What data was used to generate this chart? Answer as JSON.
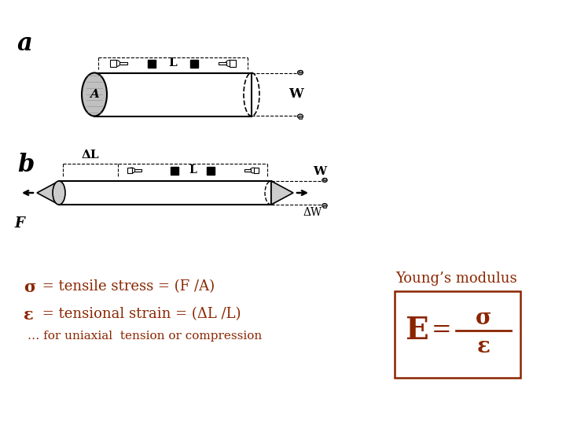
{
  "bg_color": "#ffffff",
  "dark_red": "#8B2500",
  "black": "#000000",
  "title": "Young’s modulus",
  "stress_line1_sym": "σ",
  "stress_line1_rest": " = tensile stress = (F /A)",
  "strain_line2_sym": "ε",
  "strain_line2_rest": " = tensional strain = (ΔL /L)",
  "note_line": "… for uniaxial  tension or compression",
  "label_a": "a",
  "label_b": "b",
  "label_W": "W",
  "label_F": "F",
  "label_DW": "ΔW",
  "label_DL": "ΔL",
  "label_L": "L",
  "fig_w": 7.2,
  "fig_h": 5.4,
  "dpi": 100
}
